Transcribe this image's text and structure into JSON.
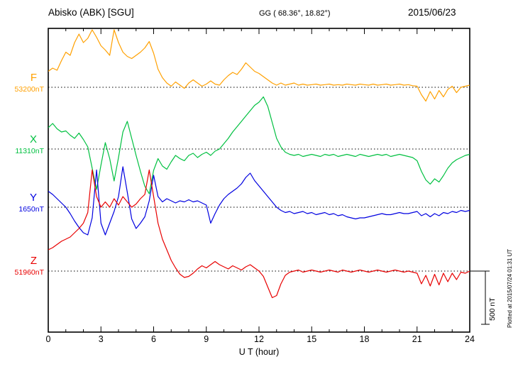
{
  "header": {
    "station": "Abisko (ABK)  [SGU]",
    "coords": "GG ( 68.36°,  18.82°)",
    "date": "2015/06/23"
  },
  "axis": {
    "x_ticks": [
      "0",
      "3",
      "6",
      "9",
      "12",
      "15",
      "18",
      "21",
      "24"
    ],
    "x_label": "U T (hour)",
    "x_range_hours": [
      0,
      24
    ]
  },
  "scale_bar": {
    "label": "500 nT",
    "value_nT": 500
  },
  "footer_note": "Plotted at 2015/07/24 01:31 UT",
  "chart_data": {
    "type": "line",
    "title": "Abisko (ABK) [SGU] magnetogram 2015/06/23",
    "xlabel": "U T (hour)",
    "x_range_hours": [
      0,
      24
    ],
    "x_start": 0,
    "x_step_hours": 0.25,
    "grid": "dotted baseline per component",
    "scale_bar_nT": 500,
    "series": [
      {
        "name": "F",
        "baseline_label": "53200nT",
        "baseline_nT": 53200,
        "color": "#ffa000",
        "offsets_nT": [
          150,
          180,
          160,
          250,
          330,
          300,
          420,
          500,
          420,
          460,
          540,
          470,
          390,
          350,
          300,
          540,
          420,
          330,
          290,
          270,
          300,
          330,
          370,
          430,
          320,
          170,
          90,
          40,
          10,
          50,
          20,
          -10,
          40,
          70,
          40,
          10,
          30,
          60,
          30,
          20,
          70,
          110,
          140,
          120,
          170,
          230,
          190,
          150,
          130,
          100,
          70,
          40,
          20,
          40,
          20,
          30,
          40,
          20,
          30,
          20,
          25,
          30,
          20,
          25,
          30,
          20,
          25,
          20,
          30,
          25,
          20,
          30,
          25,
          20,
          30,
          20,
          25,
          30,
          20,
          25,
          30,
          20,
          25,
          15,
          10,
          -70,
          -130,
          -40,
          -110,
          -30,
          -90,
          -20,
          10,
          -50,
          0,
          10,
          20
        ]
      },
      {
        "name": "X",
        "baseline_label": "11310nT",
        "baseline_nT": 11310,
        "color": "#00c040",
        "offsets_nT": [
          200,
          240,
          190,
          160,
          170,
          130,
          100,
          150,
          90,
          20,
          -180,
          -380,
          -150,
          60,
          -90,
          -300,
          -80,
          160,
          260,
          100,
          -60,
          -210,
          -350,
          -420,
          -200,
          -90,
          -160,
          -190,
          -120,
          -60,
          -90,
          -110,
          -60,
          -40,
          -80,
          -50,
          -30,
          -60,
          -20,
          0,
          50,
          100,
          160,
          210,
          260,
          310,
          360,
          410,
          440,
          490,
          400,
          250,
          100,
          20,
          -30,
          -50,
          -60,
          -50,
          -70,
          -60,
          -50,
          -60,
          -70,
          -50,
          -60,
          -50,
          -70,
          -60,
          -50,
          -60,
          -70,
          -50,
          -60,
          -70,
          -60,
          -50,
          -60,
          -50,
          -70,
          -60,
          -50,
          -60,
          -70,
          -80,
          -110,
          -210,
          -290,
          -330,
          -280,
          -310,
          -250,
          -180,
          -130,
          -100,
          -80,
          -60,
          -50
        ]
      },
      {
        "name": "Y",
        "baseline_label": "1650nT",
        "baseline_nT": 1650,
        "color": "#0000e0",
        "offsets_nT": [
          150,
          120,
          80,
          40,
          0,
          -60,
          -130,
          -190,
          -240,
          -260,
          -100,
          350,
          -150,
          -260,
          -150,
          -40,
          100,
          380,
          140,
          -110,
          -200,
          -150,
          -90,
          60,
          300,
          100,
          50,
          80,
          60,
          40,
          60,
          50,
          70,
          50,
          60,
          40,
          20,
          -150,
          -60,
          20,
          80,
          120,
          150,
          180,
          220,
          280,
          320,
          250,
          200,
          150,
          100,
          50,
          0,
          -30,
          -50,
          -40,
          -60,
          -50,
          -40,
          -60,
          -50,
          -70,
          -60,
          -50,
          -70,
          -60,
          -80,
          -70,
          -90,
          -100,
          -110,
          -100,
          -100,
          -90,
          -80,
          -70,
          -60,
          -70,
          -70,
          -60,
          -50,
          -60,
          -60,
          -50,
          -40,
          -80,
          -60,
          -90,
          -60,
          -80,
          -50,
          -60,
          -40,
          -50,
          -30,
          -40,
          -30
        ]
      },
      {
        "name": "Z",
        "baseline_label": "51960nT",
        "baseline_nT": 51960,
        "color": "#e80000",
        "offsets_nT": [
          200,
          220,
          250,
          280,
          300,
          320,
          360,
          400,
          450,
          550,
          950,
          700,
          600,
          650,
          600,
          680,
          620,
          700,
          650,
          600,
          630,
          680,
          720,
          950,
          700,
          450,
          300,
          200,
          100,
          30,
          -30,
          -60,
          -50,
          -20,
          20,
          50,
          30,
          60,
          90,
          60,
          40,
          20,
          50,
          30,
          10,
          40,
          60,
          30,
          0,
          -50,
          -150,
          -250,
          -230,
          -120,
          -40,
          -10,
          0,
          10,
          -10,
          0,
          10,
          0,
          -10,
          0,
          10,
          0,
          -10,
          10,
          0,
          -10,
          0,
          10,
          0,
          -10,
          0,
          10,
          0,
          -10,
          0,
          10,
          0,
          -10,
          0,
          -10,
          -20,
          -120,
          -40,
          -140,
          -30,
          -130,
          -20,
          -100,
          -20,
          -80,
          -10,
          -20,
          0
        ]
      }
    ]
  }
}
